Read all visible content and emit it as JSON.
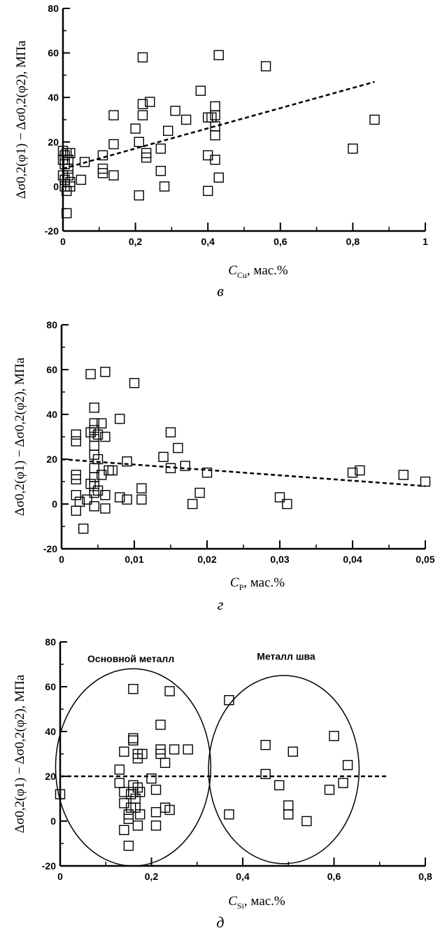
{
  "chart_data": [
    {
      "type": "scatter",
      "panel_label": "в",
      "ylabel": "Δσ0,2(φ1) − Δσ0,2(φ2), МПа",
      "xlabel": {
        "symbol": "C",
        "subscript": "Cu",
        "unit": ", мас.%"
      },
      "xlim": [
        0,
        1
      ],
      "ylim": [
        -20,
        80
      ],
      "xticks": [
        "0",
        "0,2",
        "0,4",
        "0,6",
        "0,8",
        "1"
      ],
      "yticks": [
        "-20",
        "0",
        "20",
        "40",
        "60",
        "80"
      ],
      "trendline": {
        "style": "dashed",
        "x": [
          0.0,
          0.86
        ],
        "y": [
          8,
          47
        ]
      },
      "points": [
        [
          0.0,
          16
        ],
        [
          0.0,
          12
        ],
        [
          0.0,
          5
        ],
        [
          0.005,
          14
        ],
        [
          0.005,
          10
        ],
        [
          0.005,
          3
        ],
        [
          0.005,
          0
        ],
        [
          0.01,
          -2
        ],
        [
          0.01,
          -12
        ],
        [
          0.01,
          15
        ],
        [
          0.015,
          12
        ],
        [
          0.015,
          8
        ],
        [
          0.015,
          5
        ],
        [
          0.02,
          2
        ],
        [
          0.02,
          0
        ],
        [
          0.02,
          15
        ],
        [
          0.05,
          3
        ],
        [
          0.06,
          11
        ],
        [
          0.11,
          14
        ],
        [
          0.11,
          8
        ],
        [
          0.11,
          6
        ],
        [
          0.14,
          32
        ],
        [
          0.14,
          19
        ],
        [
          0.14,
          5
        ],
        [
          0.2,
          26
        ],
        [
          0.21,
          20
        ],
        [
          0.21,
          -4
        ],
        [
          0.22,
          58
        ],
        [
          0.22,
          37
        ],
        [
          0.22,
          32
        ],
        [
          0.23,
          15
        ],
        [
          0.23,
          13
        ],
        [
          0.24,
          38
        ],
        [
          0.27,
          17
        ],
        [
          0.27,
          7
        ],
        [
          0.28,
          0
        ],
        [
          0.29,
          25
        ],
        [
          0.31,
          34
        ],
        [
          0.34,
          30
        ],
        [
          0.38,
          43
        ],
        [
          0.4,
          31
        ],
        [
          0.4,
          14
        ],
        [
          0.4,
          -2
        ],
        [
          0.41,
          31
        ],
        [
          0.42,
          36
        ],
        [
          0.42,
          32
        ],
        [
          0.42,
          27
        ],
        [
          0.42,
          23
        ],
        [
          0.42,
          12
        ],
        [
          0.43,
          59
        ],
        [
          0.43,
          4
        ],
        [
          0.56,
          54
        ],
        [
          0.8,
          17
        ],
        [
          0.86,
          30
        ]
      ]
    },
    {
      "type": "scatter",
      "panel_label": "г",
      "ylabel": "Δσ0,2(φ1) − Δσ0,2(φ2), МПа",
      "xlabel": {
        "symbol": "C",
        "subscript": "P",
        "unit": ", мас.%"
      },
      "xlim": [
        0,
        0.05
      ],
      "ylim": [
        -20,
        80
      ],
      "xticks": [
        "0",
        "0,01",
        "0,02",
        "0,03",
        "0,04",
        "0,05"
      ],
      "yticks": [
        "-20",
        "0",
        "20",
        "40",
        "60",
        "80"
      ],
      "trendline": {
        "style": "dashed",
        "x": [
          0.0,
          0.05
        ],
        "y": [
          20,
          8
        ]
      },
      "points": [
        [
          0.002,
          31
        ],
        [
          0.002,
          28
        ],
        [
          0.002,
          13
        ],
        [
          0.002,
          11
        ],
        [
          0.002,
          4
        ],
        [
          0.002,
          -3
        ],
        [
          0.0025,
          1
        ],
        [
          0.003,
          -11
        ],
        [
          0.0035,
          2
        ],
        [
          0.004,
          58
        ],
        [
          0.004,
          32
        ],
        [
          0.004,
          9
        ],
        [
          0.0045,
          43
        ],
        [
          0.0045,
          36
        ],
        [
          0.0045,
          33
        ],
        [
          0.0045,
          30
        ],
        [
          0.0045,
          26
        ],
        [
          0.0045,
          22
        ],
        [
          0.0045,
          16
        ],
        [
          0.0045,
          12
        ],
        [
          0.0045,
          8
        ],
        [
          0.0045,
          5
        ],
        [
          0.0045,
          -1
        ],
        [
          0.005,
          31
        ],
        [
          0.005,
          20
        ],
        [
          0.005,
          6
        ],
        [
          0.0055,
          36
        ],
        [
          0.0055,
          13
        ],
        [
          0.006,
          59
        ],
        [
          0.006,
          30
        ],
        [
          0.006,
          4
        ],
        [
          0.006,
          -2
        ],
        [
          0.0065,
          15
        ],
        [
          0.007,
          15
        ],
        [
          0.008,
          38
        ],
        [
          0.008,
          3
        ],
        [
          0.009,
          19
        ],
        [
          0.009,
          2
        ],
        [
          0.01,
          54
        ],
        [
          0.011,
          7
        ],
        [
          0.011,
          2
        ],
        [
          0.014,
          21
        ],
        [
          0.015,
          32
        ],
        [
          0.015,
          16
        ],
        [
          0.016,
          25
        ],
        [
          0.017,
          17
        ],
        [
          0.018,
          0
        ],
        [
          0.019,
          5
        ],
        [
          0.02,
          14
        ],
        [
          0.03,
          3
        ],
        [
          0.031,
          0
        ],
        [
          0.04,
          14
        ],
        [
          0.041,
          15
        ],
        [
          0.047,
          13
        ],
        [
          0.05,
          10
        ]
      ]
    },
    {
      "type": "scatter",
      "panel_label": "д",
      "ylabel": "Δσ0,2(φ1) − Δσ0,2(φ2), МПа",
      "xlabel": {
        "symbol": "C",
        "subscript": "Si",
        "unit": ", мас.%"
      },
      "xlim": [
        0,
        0.8
      ],
      "ylim": [
        -20,
        80
      ],
      "xticks": [
        "0",
        "0,2",
        "0,4",
        "0,6",
        "0,8"
      ],
      "yticks": [
        "-20",
        "0",
        "20",
        "40",
        "60",
        "80"
      ],
      "trendline": {
        "style": "dashed",
        "x": [
          0.0,
          0.72
        ],
        "y": [
          20,
          20
        ]
      },
      "annotations": [
        {
          "text": "Основной металл",
          "x": 0.155,
          "y": 71,
          "ellipse": {
            "cx": 0.16,
            "cy": 24,
            "rx": 0.17,
            "ry": 44
          }
        },
        {
          "text": "Металл шва",
          "x": 0.495,
          "y": 72,
          "ellipse": {
            "cx": 0.49,
            "cy": 23,
            "rx": 0.165,
            "ry": 42
          }
        }
      ],
      "points": [
        [
          0.0,
          12
        ],
        [
          0.13,
          23
        ],
        [
          0.13,
          17
        ],
        [
          0.14,
          31
        ],
        [
          0.14,
          13
        ],
        [
          0.14,
          8
        ],
        [
          0.14,
          -4
        ],
        [
          0.15,
          3
        ],
        [
          0.15,
          1
        ],
        [
          0.15,
          -11
        ],
        [
          0.155,
          12
        ],
        [
          0.155,
          6
        ],
        [
          0.16,
          59
        ],
        [
          0.16,
          37
        ],
        [
          0.16,
          36
        ],
        [
          0.16,
          16
        ],
        [
          0.16,
          13
        ],
        [
          0.165,
          10
        ],
        [
          0.165,
          6
        ],
        [
          0.17,
          30
        ],
        [
          0.17,
          28
        ],
        [
          0.17,
          15
        ],
        [
          0.17,
          -2
        ],
        [
          0.175,
          13
        ],
        [
          0.175,
          3
        ],
        [
          0.18,
          30
        ],
        [
          0.2,
          19
        ],
        [
          0.21,
          14
        ],
        [
          0.21,
          4
        ],
        [
          0.21,
          -2
        ],
        [
          0.22,
          43
        ],
        [
          0.22,
          32
        ],
        [
          0.22,
          30
        ],
        [
          0.23,
          26
        ],
        [
          0.23,
          6
        ],
        [
          0.24,
          5
        ],
        [
          0.24,
          58
        ],
        [
          0.25,
          32
        ],
        [
          0.28,
          32
        ],
        [
          0.37,
          54
        ],
        [
          0.37,
          3
        ],
        [
          0.45,
          34
        ],
        [
          0.45,
          21
        ],
        [
          0.48,
          16
        ],
        [
          0.5,
          7
        ],
        [
          0.5,
          3
        ],
        [
          0.51,
          31
        ],
        [
          0.54,
          0
        ],
        [
          0.6,
          38
        ],
        [
          0.59,
          14
        ],
        [
          0.62,
          17
        ],
        [
          0.63,
          25
        ]
      ]
    }
  ]
}
